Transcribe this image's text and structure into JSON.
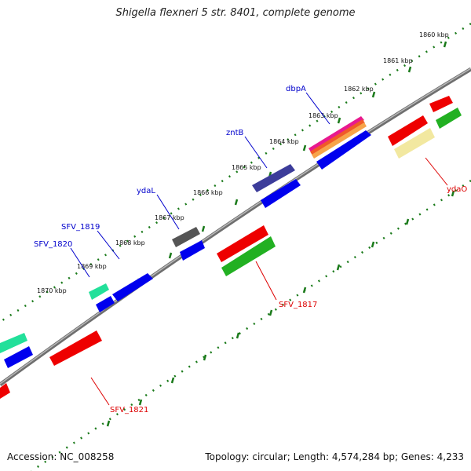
{
  "title": "Shigella flexneri 5 str. 8401, complete genome",
  "footer": {
    "accession": "Accession: NC_008258",
    "summary": "Topology: circular; Length: 4,574,284 bp; Genes: 4,233"
  },
  "colors": {
    "backbone": "#8a8a8a",
    "tick": "#1a7a1a",
    "label_forward": "#0000cc",
    "label_reverse": "#dd0000"
  },
  "ticks": [
    {
      "id": "1860",
      "label": "1860 kbp"
    },
    {
      "id": "1861",
      "label": "1861 kbp"
    },
    {
      "id": "1862",
      "label": "1862 kbp"
    },
    {
      "id": "1863",
      "label": "1863 kbp"
    },
    {
      "id": "1864",
      "label": "1864 kbp"
    },
    {
      "id": "1865",
      "label": "1865 kbp"
    },
    {
      "id": "1866",
      "label": "1866 kbp"
    },
    {
      "id": "1867",
      "label": "1867 kbp"
    },
    {
      "id": "1868",
      "label": "1868 kbp"
    },
    {
      "id": "1869",
      "label": "1869 kbp"
    },
    {
      "id": "1870",
      "label": "1870 kbp"
    }
  ],
  "gene_labels": [
    {
      "id": "dbpA",
      "text": "dbpA",
      "strand": "forward"
    },
    {
      "id": "zntB",
      "text": "zntB",
      "strand": "forward"
    },
    {
      "id": "ydaL",
      "text": "ydaL",
      "strand": "forward"
    },
    {
      "id": "SFV_1819",
      "text": "SFV_1819",
      "strand": "forward"
    },
    {
      "id": "SFV_1820",
      "text": "SFV_1820",
      "strand": "forward"
    },
    {
      "id": "ydaO",
      "text": "ydaO",
      "strand": "reverse"
    },
    {
      "id": "SFV_1817",
      "text": "SFV_1817",
      "strand": "reverse"
    },
    {
      "id": "SFV_1821",
      "text": "SFV_1821",
      "strand": "reverse"
    }
  ]
}
